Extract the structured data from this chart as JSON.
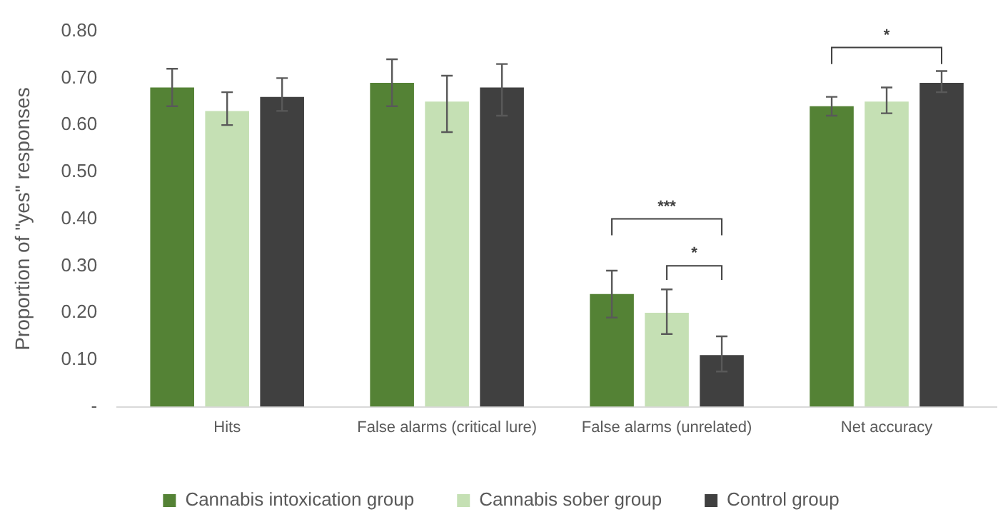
{
  "chart_data": {
    "type": "bar",
    "ylabel": "Proportion of \"yes\" responses",
    "categories": [
      "Hits",
      "False alarms (critical lure)",
      "False alarms (unrelated)",
      "Net accuracy"
    ],
    "series": [
      {
        "name": "Cannabis intoxication group",
        "color": "#548235",
        "values": [
          0.68,
          0.69,
          0.24,
          0.64
        ],
        "errors": [
          [
            0.64,
            0.72
          ],
          [
            0.64,
            0.74
          ],
          [
            0.19,
            0.29
          ],
          [
            0.62,
            0.66
          ]
        ]
      },
      {
        "name": "Cannabis sober group",
        "color": "#c5e0b4",
        "values": [
          0.63,
          0.65,
          0.2,
          0.65
        ],
        "errors": [
          [
            0.6,
            0.67
          ],
          [
            0.585,
            0.705
          ],
          [
            0.155,
            0.25
          ],
          [
            0.625,
            0.68
          ]
        ]
      },
      {
        "name": "Control group",
        "color": "#404040",
        "values": [
          0.66,
          0.68,
          0.11,
          0.69
        ],
        "errors": [
          [
            0.63,
            0.7
          ],
          [
            0.62,
            0.73
          ],
          [
            0.075,
            0.15
          ],
          [
            0.67,
            0.715
          ]
        ]
      }
    ],
    "ylim": [
      0,
      0.8
    ],
    "yticks": [
      {
        "value": 0,
        "label": "-"
      },
      {
        "value": 0.1,
        "label": "0.10"
      },
      {
        "value": 0.2,
        "label": "0.20"
      },
      {
        "value": 0.3,
        "label": "0.30"
      },
      {
        "value": 0.4,
        "label": "0.40"
      },
      {
        "value": 0.5,
        "label": "0.50"
      },
      {
        "value": 0.6,
        "label": "0.60"
      },
      {
        "value": 0.7,
        "label": "0.70"
      },
      {
        "value": 0.8,
        "label": "0.80"
      }
    ],
    "grid": false,
    "legend": "bottom",
    "annotations": [
      "***",
      "*",
      "*"
    ]
  }
}
